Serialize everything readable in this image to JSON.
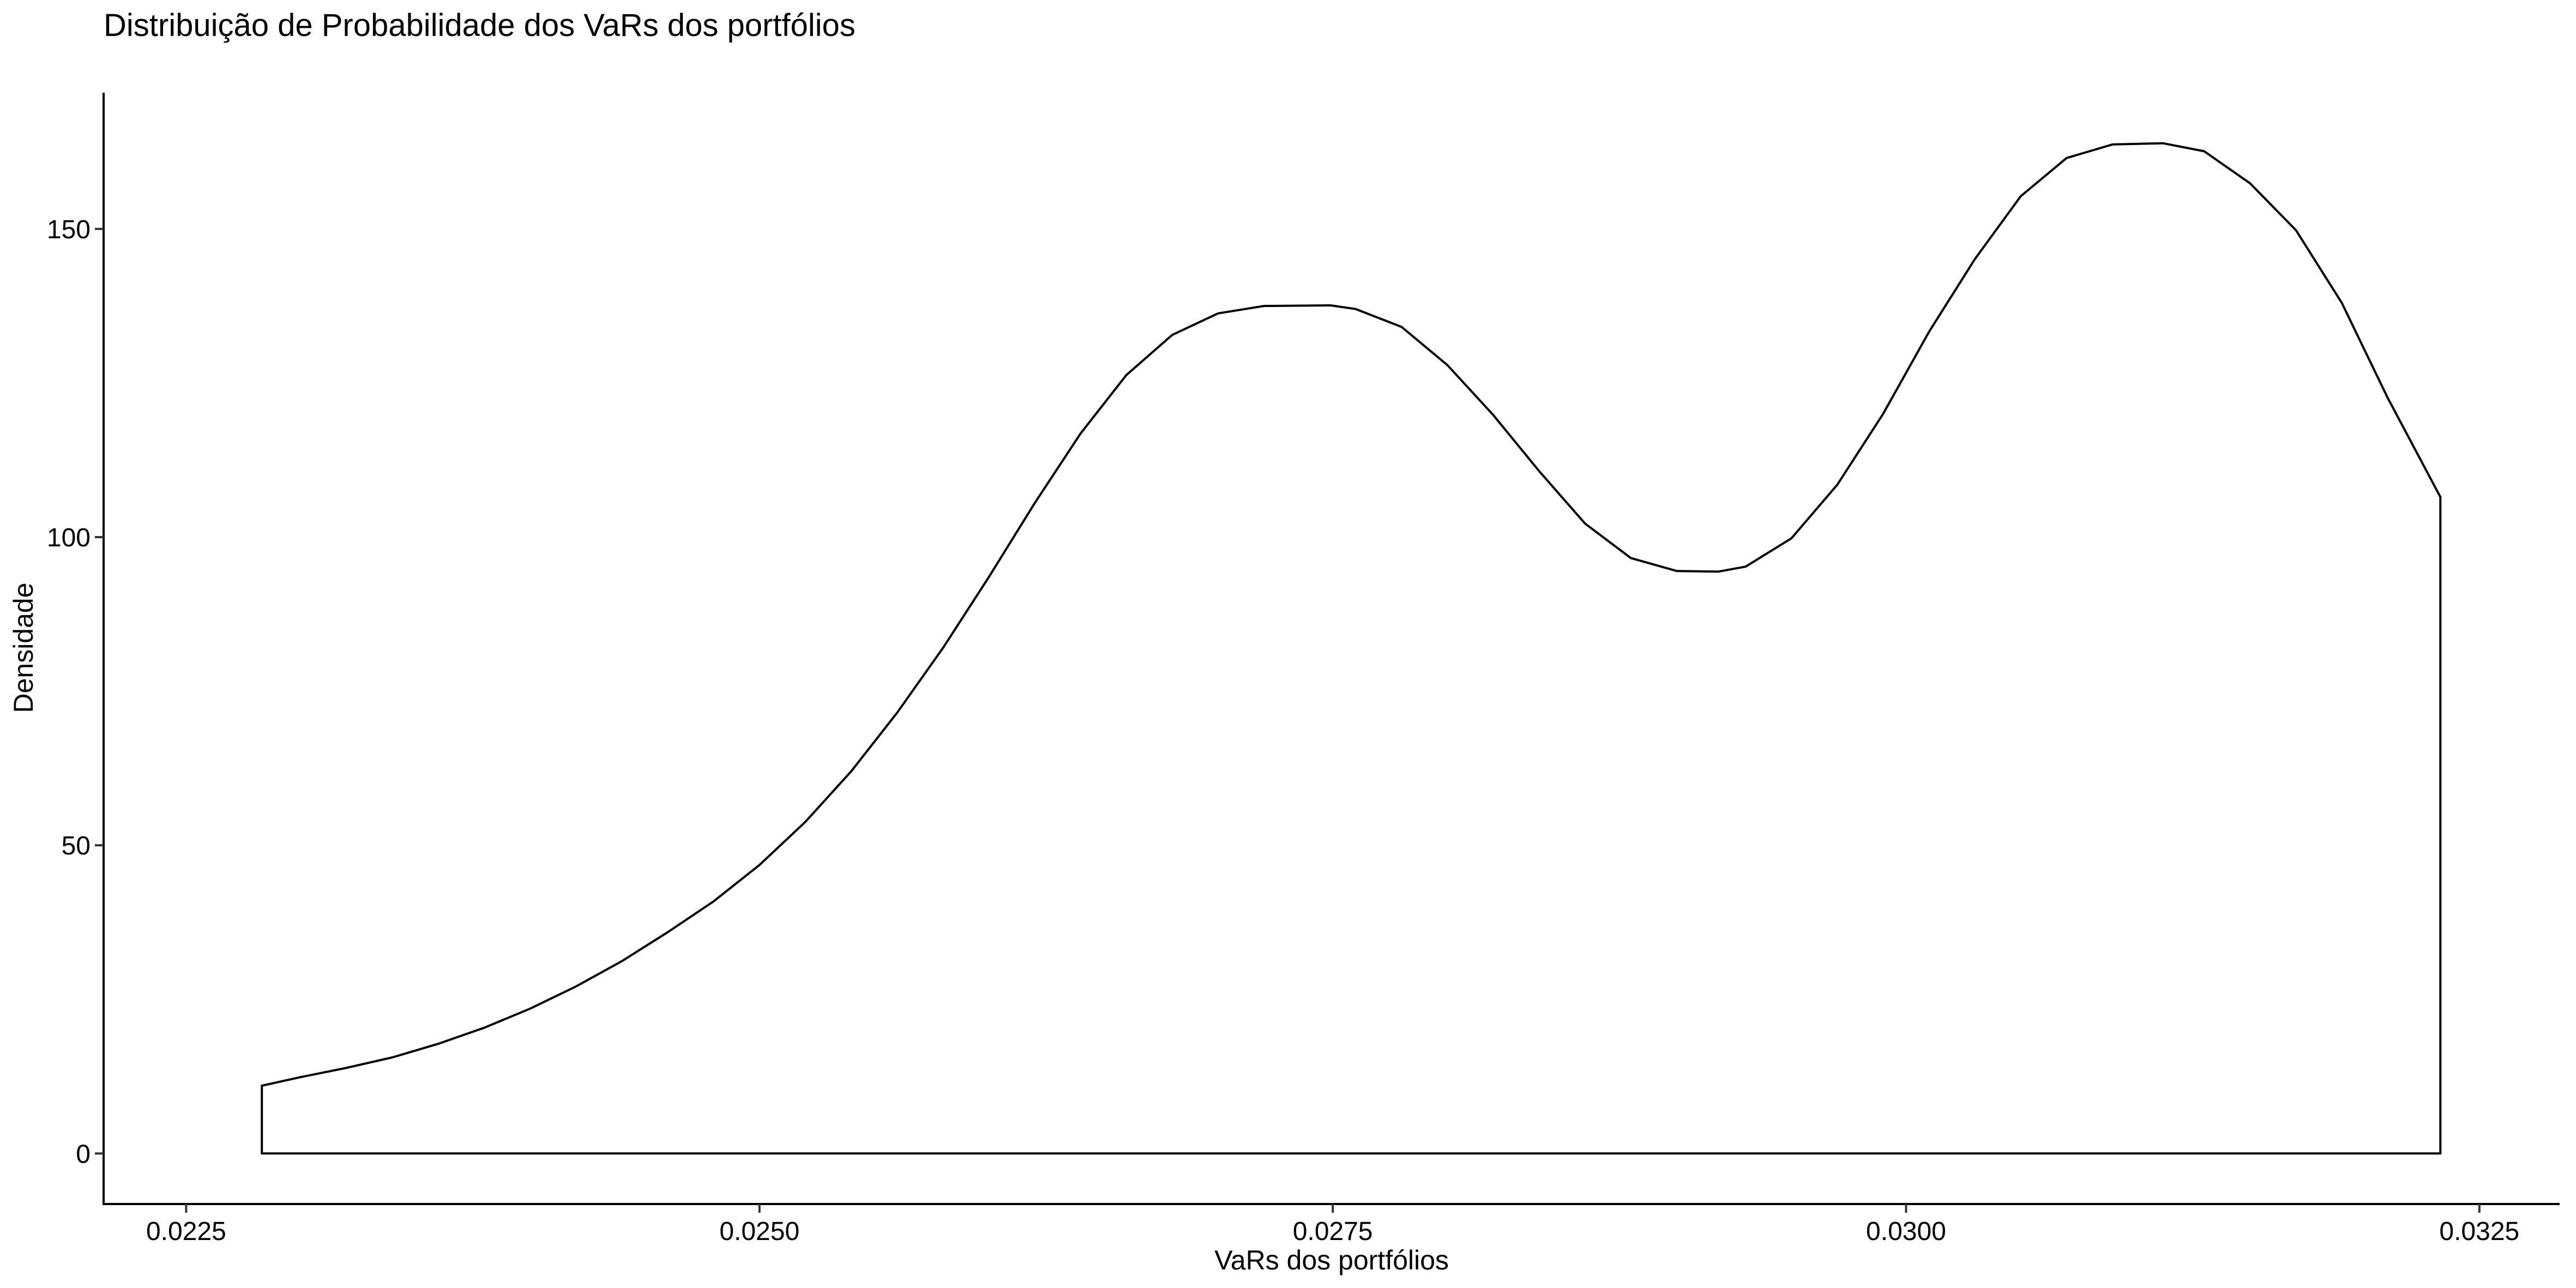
{
  "chart_data": {
    "type": "area",
    "title": "Distribuição de Probabilidade dos VaRs dos portfólios",
    "xlabel": "VaRs dos portfólios",
    "ylabel": "Densidade",
    "xlim": [
      0.02214,
      0.03285
    ],
    "ylim": [
      -8.2,
      172.1
    ],
    "x_ticks": [
      0.0225,
      0.025,
      0.0275,
      0.03,
      0.0325
    ],
    "x_tick_labels": [
      "0.0225",
      "0.0250",
      "0.0275",
      "0.0300",
      "0.0325"
    ],
    "y_ticks": [
      0,
      50,
      100,
      150
    ],
    "y_tick_labels": [
      "0",
      "50",
      "100",
      "150"
    ],
    "grid": false,
    "legend": "none",
    "colors": {
      "line": "#000000",
      "fill": "#ffffff",
      "background": "#ffffff"
    },
    "series": [
      {
        "x": [
          0.02283,
          0.023,
          0.0232,
          0.0234,
          0.0236,
          0.0238,
          0.024,
          0.0242,
          0.0244,
          0.0246,
          0.0248,
          0.025,
          0.0252,
          0.0254,
          0.0256,
          0.0258,
          0.026,
          0.0262,
          0.0264,
          0.0266,
          0.0268,
          0.027,
          0.0272,
          0.02749,
          0.0276,
          0.0278,
          0.028,
          0.0282,
          0.0284,
          0.0286,
          0.0288,
          0.029,
          0.02918,
          0.0293,
          0.0295,
          0.0297,
          0.0299,
          0.0301,
          0.0303,
          0.0305,
          0.0307,
          0.0309,
          0.03112,
          0.0313,
          0.0315,
          0.0317,
          0.0319,
          0.0321,
          0.03233
        ],
        "y": [
          11,
          12.4,
          13.9,
          15.6,
          17.8,
          20.4,
          23.5,
          27.1,
          31.2,
          35.9,
          40.9,
          46.8,
          53.8,
          62.0,
          71.5,
          82.0,
          93.5,
          105.5,
          116.8,
          126.3,
          132.8,
          136.3,
          137.5,
          137.6,
          137.0,
          134.1,
          127.9,
          119.8,
          110.7,
          102.2,
          96.6,
          94.5,
          94.4,
          95.2,
          99.8,
          108.5,
          120.0,
          133.3,
          145.1,
          155.3,
          161.5,
          163.7,
          163.9,
          162.6,
          157.4,
          149.8,
          138.0,
          122.6,
          106.5
        ]
      }
    ]
  }
}
